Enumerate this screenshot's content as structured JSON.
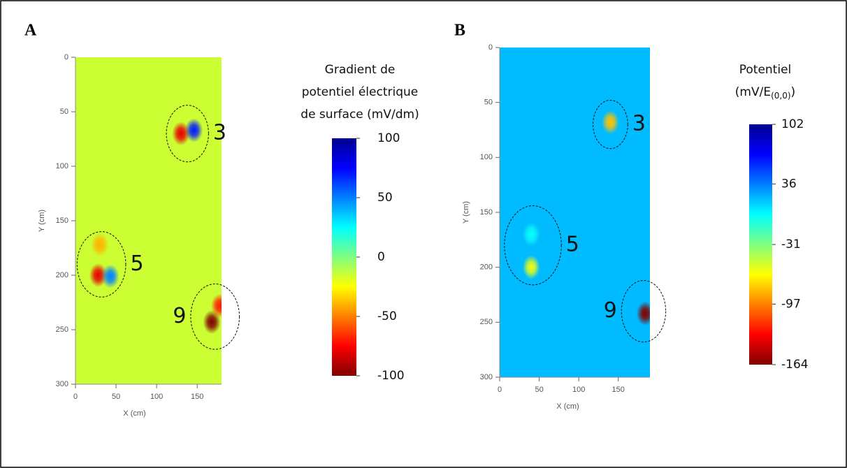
{
  "chart_data": [
    {
      "type": "heatmap",
      "panel_label": "A",
      "xlabel": "X (cm)",
      "ylabel": "Y (cm)",
      "xlim": [
        0,
        180
      ],
      "ylim": [
        300,
        0
      ],
      "xticks": [
        0,
        50,
        100,
        150
      ],
      "yticks": [
        0,
        50,
        100,
        150,
        200,
        250,
        300
      ],
      "colorbar_title": [
        "Gradient de",
        "potentiel électrique",
        "de surface (mV/dm)"
      ],
      "colorbar_lim": [
        -100,
        100
      ],
      "colorbar_ticks": [
        100,
        50,
        0,
        -50,
        -100
      ],
      "background_value": -15,
      "spots": [
        {
          "label": "3",
          "x": 138,
          "y": 70,
          "r": 26,
          "points": [
            {
              "x": 130,
              "y": 70,
              "value": -80
            },
            {
              "x": 146,
              "y": 67,
              "value": 70
            }
          ]
        },
        {
          "label": "5",
          "x": 32,
          "y": 190,
          "r": 30,
          "points": [
            {
              "x": 28,
              "y": 200,
              "value": -80
            },
            {
              "x": 30,
              "y": 172,
              "value": -40
            },
            {
              "x": 43,
              "y": 201,
              "value": 50
            }
          ]
        },
        {
          "label": "9",
          "x": 172,
          "y": 238,
          "r": 30,
          "points": [
            {
              "x": 168,
              "y": 243,
              "value": -100
            },
            {
              "x": 178,
              "y": 228,
              "value": -70
            }
          ]
        }
      ]
    },
    {
      "type": "heatmap",
      "panel_label": "B",
      "xlabel": "X (cm)",
      "ylabel": "Y (cm)",
      "xlim": [
        0,
        190
      ],
      "ylim": [
        300,
        0
      ],
      "xticks": [
        0,
        50,
        100,
        150
      ],
      "yticks": [
        0,
        50,
        100,
        150,
        200,
        250,
        300
      ],
      "colorbar_title": [
        "Potentiel",
        "(mV/E",
        "(0,0)",
        ")"
      ],
      "colorbar_lim": [
        -164,
        102
      ],
      "colorbar_ticks": [
        102,
        36,
        -31,
        -97,
        -164
      ],
      "background_value": 20,
      "spots": [
        {
          "label": "3",
          "x": 140,
          "y": 70,
          "r": 22,
          "points": [
            {
              "x": 140,
              "y": 68,
              "value": -80
            }
          ]
        },
        {
          "label": "5",
          "x": 42,
          "y": 180,
          "r": 36,
          "points": [
            {
              "x": 40,
              "y": 200,
              "value": -60
            },
            {
              "x": 40,
              "y": 170,
              "value": 0
            }
          ]
        },
        {
          "label": "9",
          "x": 182,
          "y": 240,
          "r": 28,
          "points": [
            {
              "x": 184,
              "y": 242,
              "value": -164
            }
          ]
        }
      ]
    }
  ]
}
